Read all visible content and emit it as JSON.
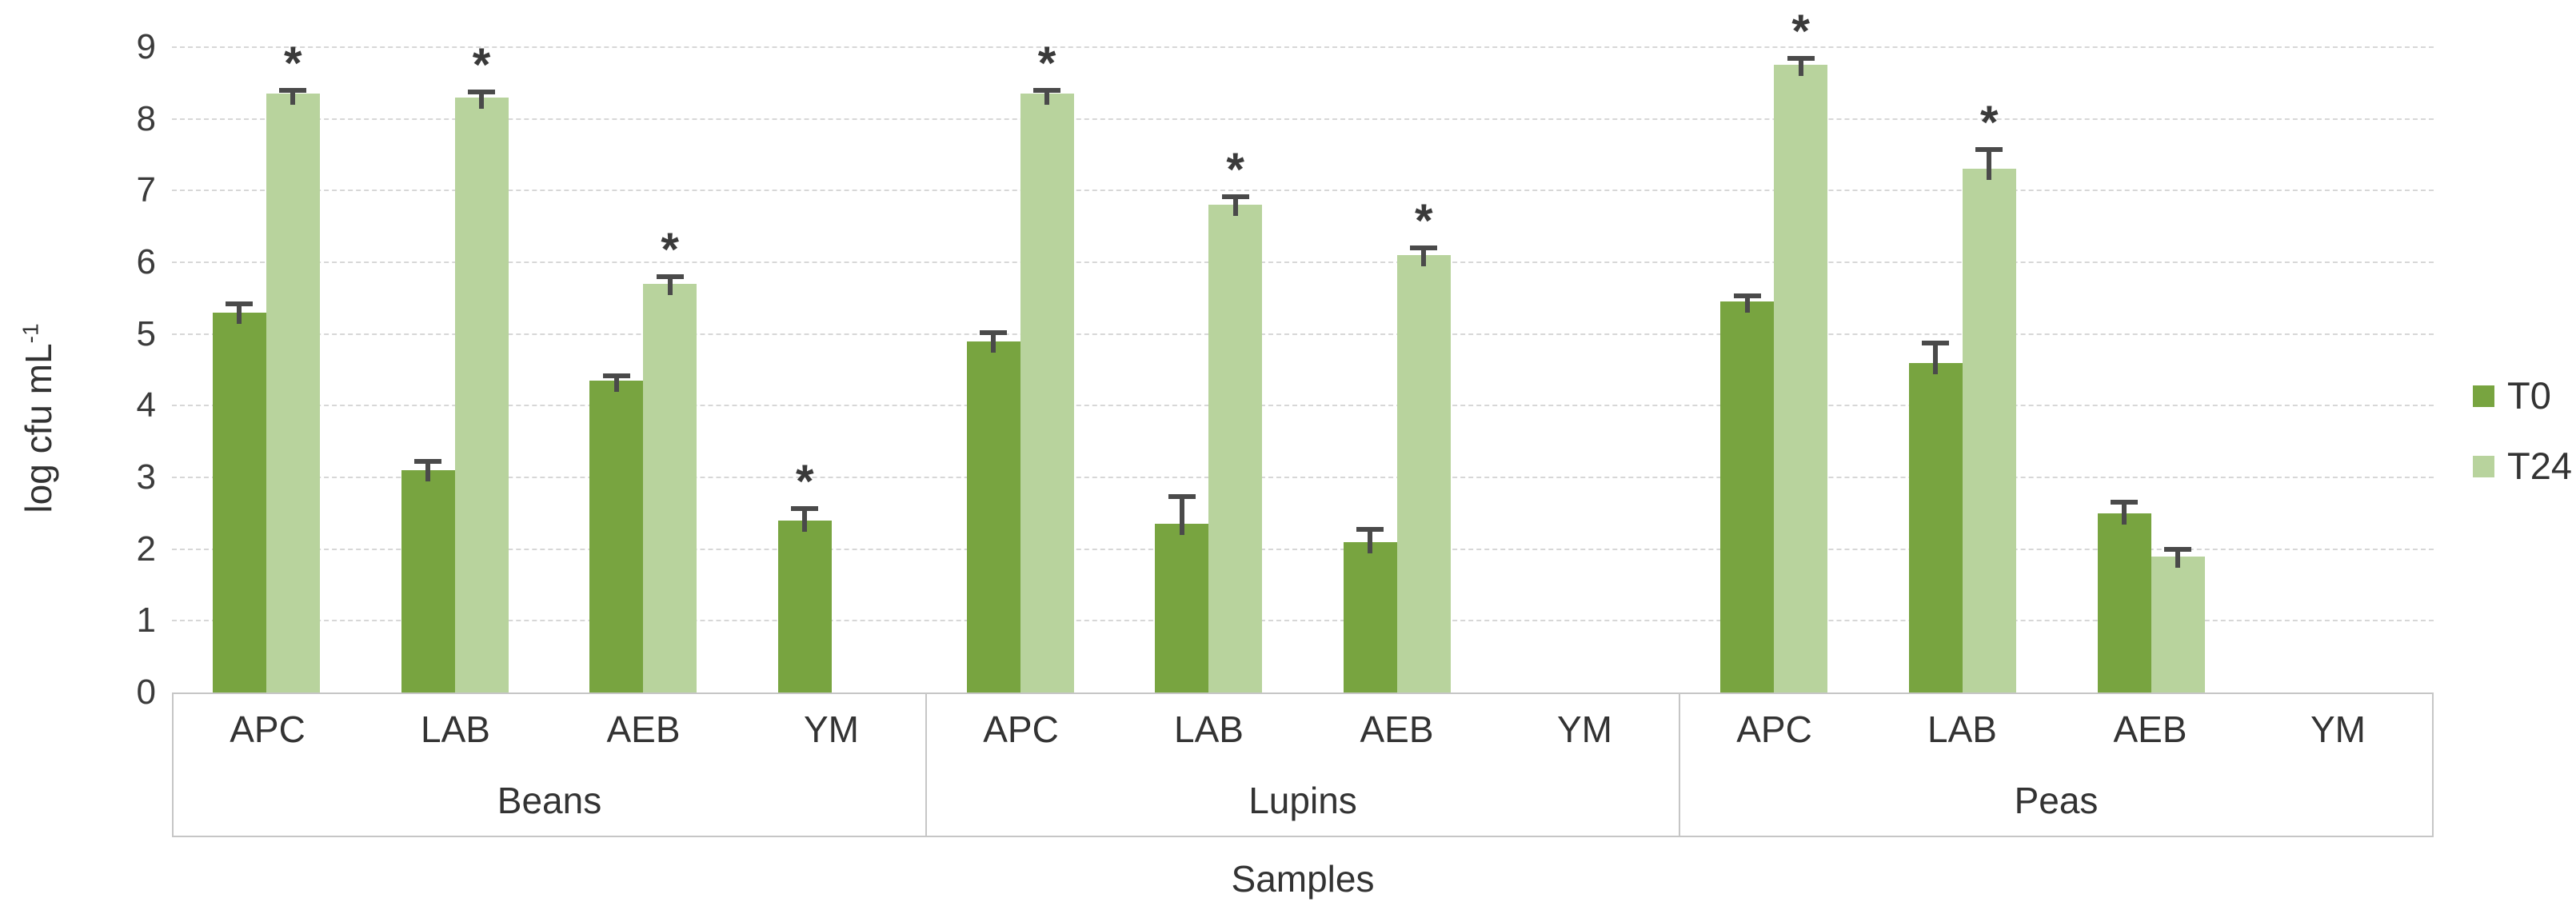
{
  "chart_data": {
    "type": "bar",
    "title": "",
    "xlabel": "Samples",
    "ylabel": "log cfu mL⁻¹",
    "ylabel_parts": {
      "base": "log cfu mL",
      "superscript": "-1"
    },
    "ylim": [
      0,
      9
    ],
    "yticks": [
      "0",
      "1",
      "2",
      "3",
      "4",
      "5",
      "6",
      "7",
      "8",
      "9"
    ],
    "grid": "horizontal-dashed",
    "legend": {
      "position": "right",
      "entries": [
        "T0",
        "T24"
      ]
    },
    "series_names": [
      "T0",
      "T24"
    ],
    "series_colors": {
      "T0": "#78A440",
      "T24": "#B8D39D"
    },
    "error_bar_color": "#4A4A4A",
    "significance_marker": "*",
    "groups": [
      {
        "label": "Beans",
        "categories": [
          {
            "label": "APC",
            "values": {
              "T0": 5.3,
              "T24": 8.35
            },
            "errors": {
              "T0": 0.12,
              "T24": 0.05
            },
            "significant": {
              "T0": false,
              "T24": true
            }
          },
          {
            "label": "LAB",
            "values": {
              "T0": 3.1,
              "T24": 8.3
            },
            "errors": {
              "T0": 0.12,
              "T24": 0.08
            },
            "significant": {
              "T0": false,
              "T24": true
            }
          },
          {
            "label": "AEB",
            "values": {
              "T0": 4.35,
              "T24": 5.7
            },
            "errors": {
              "T0": 0.07,
              "T24": 0.1
            },
            "significant": {
              "T0": false,
              "T24": true
            }
          },
          {
            "label": "YM",
            "values": {
              "T0": 2.4,
              "T24": null
            },
            "errors": {
              "T0": 0.17,
              "T24": null
            },
            "significant": {
              "T0": true,
              "T24": false
            }
          }
        ]
      },
      {
        "label": "Lupins",
        "categories": [
          {
            "label": "APC",
            "values": {
              "T0": 4.9,
              "T24": 8.35
            },
            "errors": {
              "T0": 0.12,
              "T24": 0.05
            },
            "significant": {
              "T0": false,
              "T24": true
            }
          },
          {
            "label": "LAB",
            "values": {
              "T0": 2.35,
              "T24": 6.8
            },
            "errors": {
              "T0": 0.38,
              "T24": 0.12
            },
            "significant": {
              "T0": false,
              "T24": true
            }
          },
          {
            "label": "AEB",
            "values": {
              "T0": 2.1,
              "T24": 6.1
            },
            "errors": {
              "T0": 0.17,
              "T24": 0.1
            },
            "significant": {
              "T0": false,
              "T24": true
            }
          },
          {
            "label": "YM",
            "values": {
              "T0": null,
              "T24": null
            },
            "errors": {
              "T0": null,
              "T24": null
            },
            "significant": {
              "T0": false,
              "T24": false
            }
          }
        ]
      },
      {
        "label": "Peas",
        "categories": [
          {
            "label": "APC",
            "values": {
              "T0": 5.45,
              "T24": 8.75
            },
            "errors": {
              "T0": 0.08,
              "T24": 0.09
            },
            "significant": {
              "T0": false,
              "T24": true
            }
          },
          {
            "label": "LAB",
            "values": {
              "T0": 4.6,
              "T24": 7.3
            },
            "errors": {
              "T0": 0.27,
              "T24": 0.27
            },
            "significant": {
              "T0": false,
              "T24": true
            }
          },
          {
            "label": "AEB",
            "values": {
              "T0": 2.5,
              "T24": 1.9
            },
            "errors": {
              "T0": 0.15,
              "T24": 0.1
            },
            "significant": {
              "T0": false,
              "T24": false
            }
          },
          {
            "label": "YM",
            "values": {
              "T0": null,
              "T24": null
            },
            "errors": {
              "T0": null,
              "T24": null
            },
            "significant": {
              "T0": false,
              "T24": false
            }
          }
        ]
      }
    ]
  },
  "colors": {
    "gridline": "#D7D7D7",
    "axis_border": "#C6C6C6",
    "text": "#3B3B3B",
    "background": "#FFFFFF"
  }
}
